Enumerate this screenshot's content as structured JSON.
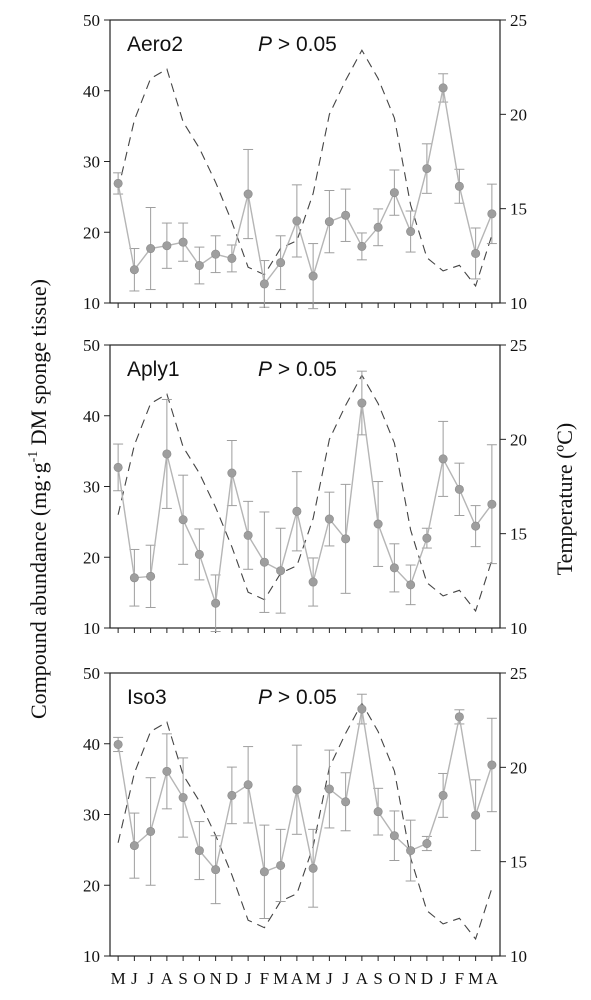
{
  "figure": {
    "ylabel_left": "Compound abundance (mg·g",
    "ylabel_left_sup": "-1",
    "ylabel_left_tail": " DM sponge tissue)",
    "ylabel_right": "Temperature (ºC)"
  },
  "chart_data": [
    {
      "type": "line",
      "panel_label": "Aero2",
      "stat_symbol": "P",
      "stat_text": " > 0.05",
      "x_tick_labels": [
        "M",
        "J",
        "J",
        "A",
        "S",
        "O",
        "N",
        "D",
        "J",
        "F",
        "M",
        "A",
        "M",
        "J",
        "J",
        "A",
        "S",
        "O",
        "N",
        "D",
        "J",
        "F",
        "M",
        "A"
      ],
      "yticks_left": [
        10,
        20,
        30,
        40,
        50
      ],
      "yticks_right": [
        10,
        15,
        20,
        25
      ],
      "ylim_left": [
        10,
        50
      ],
      "ylim_right": [
        10,
        25
      ],
      "series": [
        {
          "axis": "left",
          "style": "solid-markers",
          "values": [
            26.9,
            14.7,
            17.7,
            18.1,
            18.6,
            15.3,
            16.9,
            16.3,
            25.4,
            12.7,
            15.7,
            21.6,
            13.8,
            21.5,
            22.4,
            18.0,
            20.7,
            25.6,
            20.1,
            29.0,
            40.4,
            26.5,
            17.0,
            22.6
          ],
          "error": [
            1.5,
            3.0,
            5.8,
            3.2,
            2.7,
            2.6,
            2.6,
            1.9,
            6.3,
            3.3,
            3.8,
            5.1,
            4.6,
            4.4,
            3.7,
            1.9,
            2.6,
            3.2,
            2.9,
            3.5,
            2.0,
            2.4,
            3.6,
            4.2
          ]
        },
        {
          "axis": "right",
          "style": "dashed",
          "values": [
            16.0,
            19.7,
            21.9,
            22.4,
            19.6,
            18.2,
            16.4,
            14.3,
            11.9,
            11.5,
            12.9,
            13.3,
            15.8,
            20.0,
            21.8,
            23.4,
            21.9,
            19.8,
            15.2,
            12.4,
            11.7,
            12.0,
            10.9,
            13.6
          ]
        }
      ]
    },
    {
      "type": "line",
      "panel_label": "Aply1",
      "stat_symbol": "P",
      "stat_text": " > 0.05",
      "x_tick_labels": [
        "M",
        "J",
        "J",
        "A",
        "S",
        "O",
        "N",
        "D",
        "J",
        "F",
        "M",
        "A",
        "M",
        "J",
        "J",
        "A",
        "S",
        "O",
        "N",
        "D",
        "J",
        "F",
        "M",
        "A"
      ],
      "yticks_left": [
        10,
        20,
        30,
        40,
        50
      ],
      "yticks_right": [
        10,
        15,
        20,
        25
      ],
      "ylim_left": [
        10,
        50
      ],
      "ylim_right": [
        10,
        25
      ],
      "series": [
        {
          "axis": "left",
          "style": "solid-markers",
          "values": [
            32.7,
            17.1,
            17.3,
            34.6,
            25.3,
            20.4,
            13.5,
            31.9,
            23.1,
            19.3,
            18.1,
            26.5,
            16.5,
            25.4,
            22.6,
            41.8,
            24.7,
            18.5,
            16.1,
            22.7,
            33.9,
            29.6,
            24.4,
            27.5
          ],
          "error": [
            3.3,
            4.0,
            4.4,
            7.7,
            6.3,
            3.6,
            4.0,
            4.6,
            4.8,
            7.1,
            6.0,
            5.6,
            3.4,
            3.8,
            7.7,
            4.5,
            6.0,
            3.4,
            2.8,
            1.4,
            5.3,
            3.7,
            2.9,
            8.4
          ]
        },
        {
          "axis": "right",
          "style": "dashed",
          "values": [
            16.0,
            19.7,
            21.9,
            22.4,
            19.6,
            18.2,
            16.4,
            14.3,
            11.9,
            11.5,
            12.9,
            13.3,
            15.8,
            20.0,
            21.8,
            23.4,
            21.9,
            19.8,
            15.2,
            12.4,
            11.7,
            12.0,
            10.9,
            13.6
          ]
        }
      ]
    },
    {
      "type": "line",
      "panel_label": "Iso3",
      "stat_symbol": "P",
      "stat_text": " > 0.05",
      "x_tick_labels": [
        "M",
        "J",
        "J",
        "A",
        "S",
        "O",
        "N",
        "D",
        "J",
        "F",
        "M",
        "A",
        "M",
        "J",
        "J",
        "A",
        "S",
        "O",
        "N",
        "D",
        "J",
        "F",
        "M",
        "A"
      ],
      "yticks_left": [
        10,
        20,
        30,
        40,
        50
      ],
      "yticks_right": [
        10,
        15,
        20,
        25
      ],
      "ylim_left": [
        10,
        50
      ],
      "ylim_right": [
        10,
        25
      ],
      "series": [
        {
          "axis": "left",
          "style": "solid-markers",
          "values": [
            39.9,
            25.6,
            27.6,
            36.1,
            32.4,
            24.9,
            22.2,
            32.7,
            34.2,
            21.9,
            22.8,
            33.5,
            22.4,
            33.6,
            31.8,
            44.9,
            30.4,
            27.0,
            24.9,
            25.9,
            32.7,
            43.8,
            29.9,
            37.0
          ],
          "error": [
            1.0,
            4.6,
            7.6,
            5.3,
            5.6,
            4.1,
            4.8,
            4.0,
            5.4,
            6.6,
            5.1,
            6.3,
            5.5,
            5.5,
            4.1,
            2.1,
            3.3,
            3.5,
            4.3,
            1.0,
            3.1,
            1.0,
            5.0,
            6.6
          ]
        },
        {
          "axis": "right",
          "style": "dashed",
          "values": [
            16.0,
            19.7,
            21.9,
            22.4,
            19.6,
            18.2,
            16.4,
            14.3,
            11.9,
            11.5,
            12.9,
            13.3,
            15.8,
            20.0,
            21.8,
            23.4,
            21.9,
            19.8,
            15.2,
            12.4,
            11.7,
            12.0,
            10.9,
            13.6
          ]
        }
      ]
    }
  ]
}
